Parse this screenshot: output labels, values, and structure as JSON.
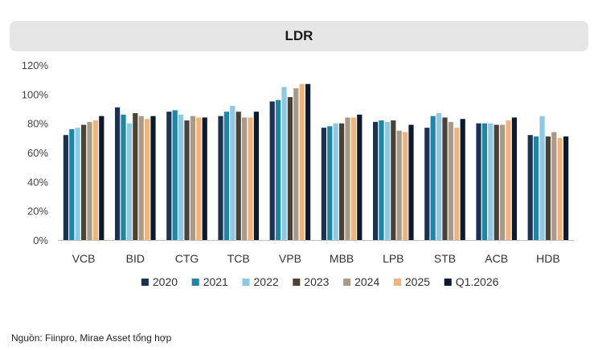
{
  "title": "LDR",
  "source": "Nguồn: Fiinpro, Mirae Asset tổng hợp",
  "chart_data": {
    "type": "bar",
    "title": "LDR",
    "xlabel": "",
    "ylabel": "",
    "ylim": [
      0,
      120
    ],
    "yticks": [
      "0%",
      "20%",
      "40%",
      "60%",
      "80%",
      "100%",
      "120%"
    ],
    "grid": false,
    "legend_position": "bottom",
    "categories": [
      "VCB",
      "BID",
      "CTG",
      "TCB",
      "VPB",
      "MBB",
      "LPB",
      "STB",
      "ACB",
      "HDB"
    ],
    "series": [
      {
        "name": "2020",
        "color": "#1b3350",
        "values": [
          72,
          91,
          88,
          85,
          95,
          77,
          81,
          77,
          80,
          72
        ]
      },
      {
        "name": "2021",
        "color": "#1a86a8",
        "values": [
          76,
          86,
          89,
          88,
          96,
          78,
          82,
          85,
          80,
          71
        ]
      },
      {
        "name": "2022",
        "color": "#8ec9e3",
        "values": [
          77,
          80,
          86,
          92,
          105,
          80,
          81,
          87,
          80,
          85
        ]
      },
      {
        "name": "2023",
        "color": "#4a4237",
        "values": [
          79,
          87,
          82,
          88,
          98,
          80,
          82,
          84,
          79,
          71
        ]
      },
      {
        "name": "2024",
        "color": "#a89a86",
        "values": [
          81,
          85,
          85,
          84,
          104,
          84,
          75,
          81,
          79,
          74
        ]
      },
      {
        "name": "2025",
        "color": "#f1b37c",
        "values": [
          82,
          83,
          84,
          84,
          107,
          84,
          74,
          77,
          82,
          70
        ]
      },
      {
        "name": "Q1.2026",
        "color": "#0c1a2e",
        "values": [
          85,
          85,
          84,
          88,
          107,
          86,
          79,
          83,
          84,
          71
        ]
      }
    ]
  }
}
